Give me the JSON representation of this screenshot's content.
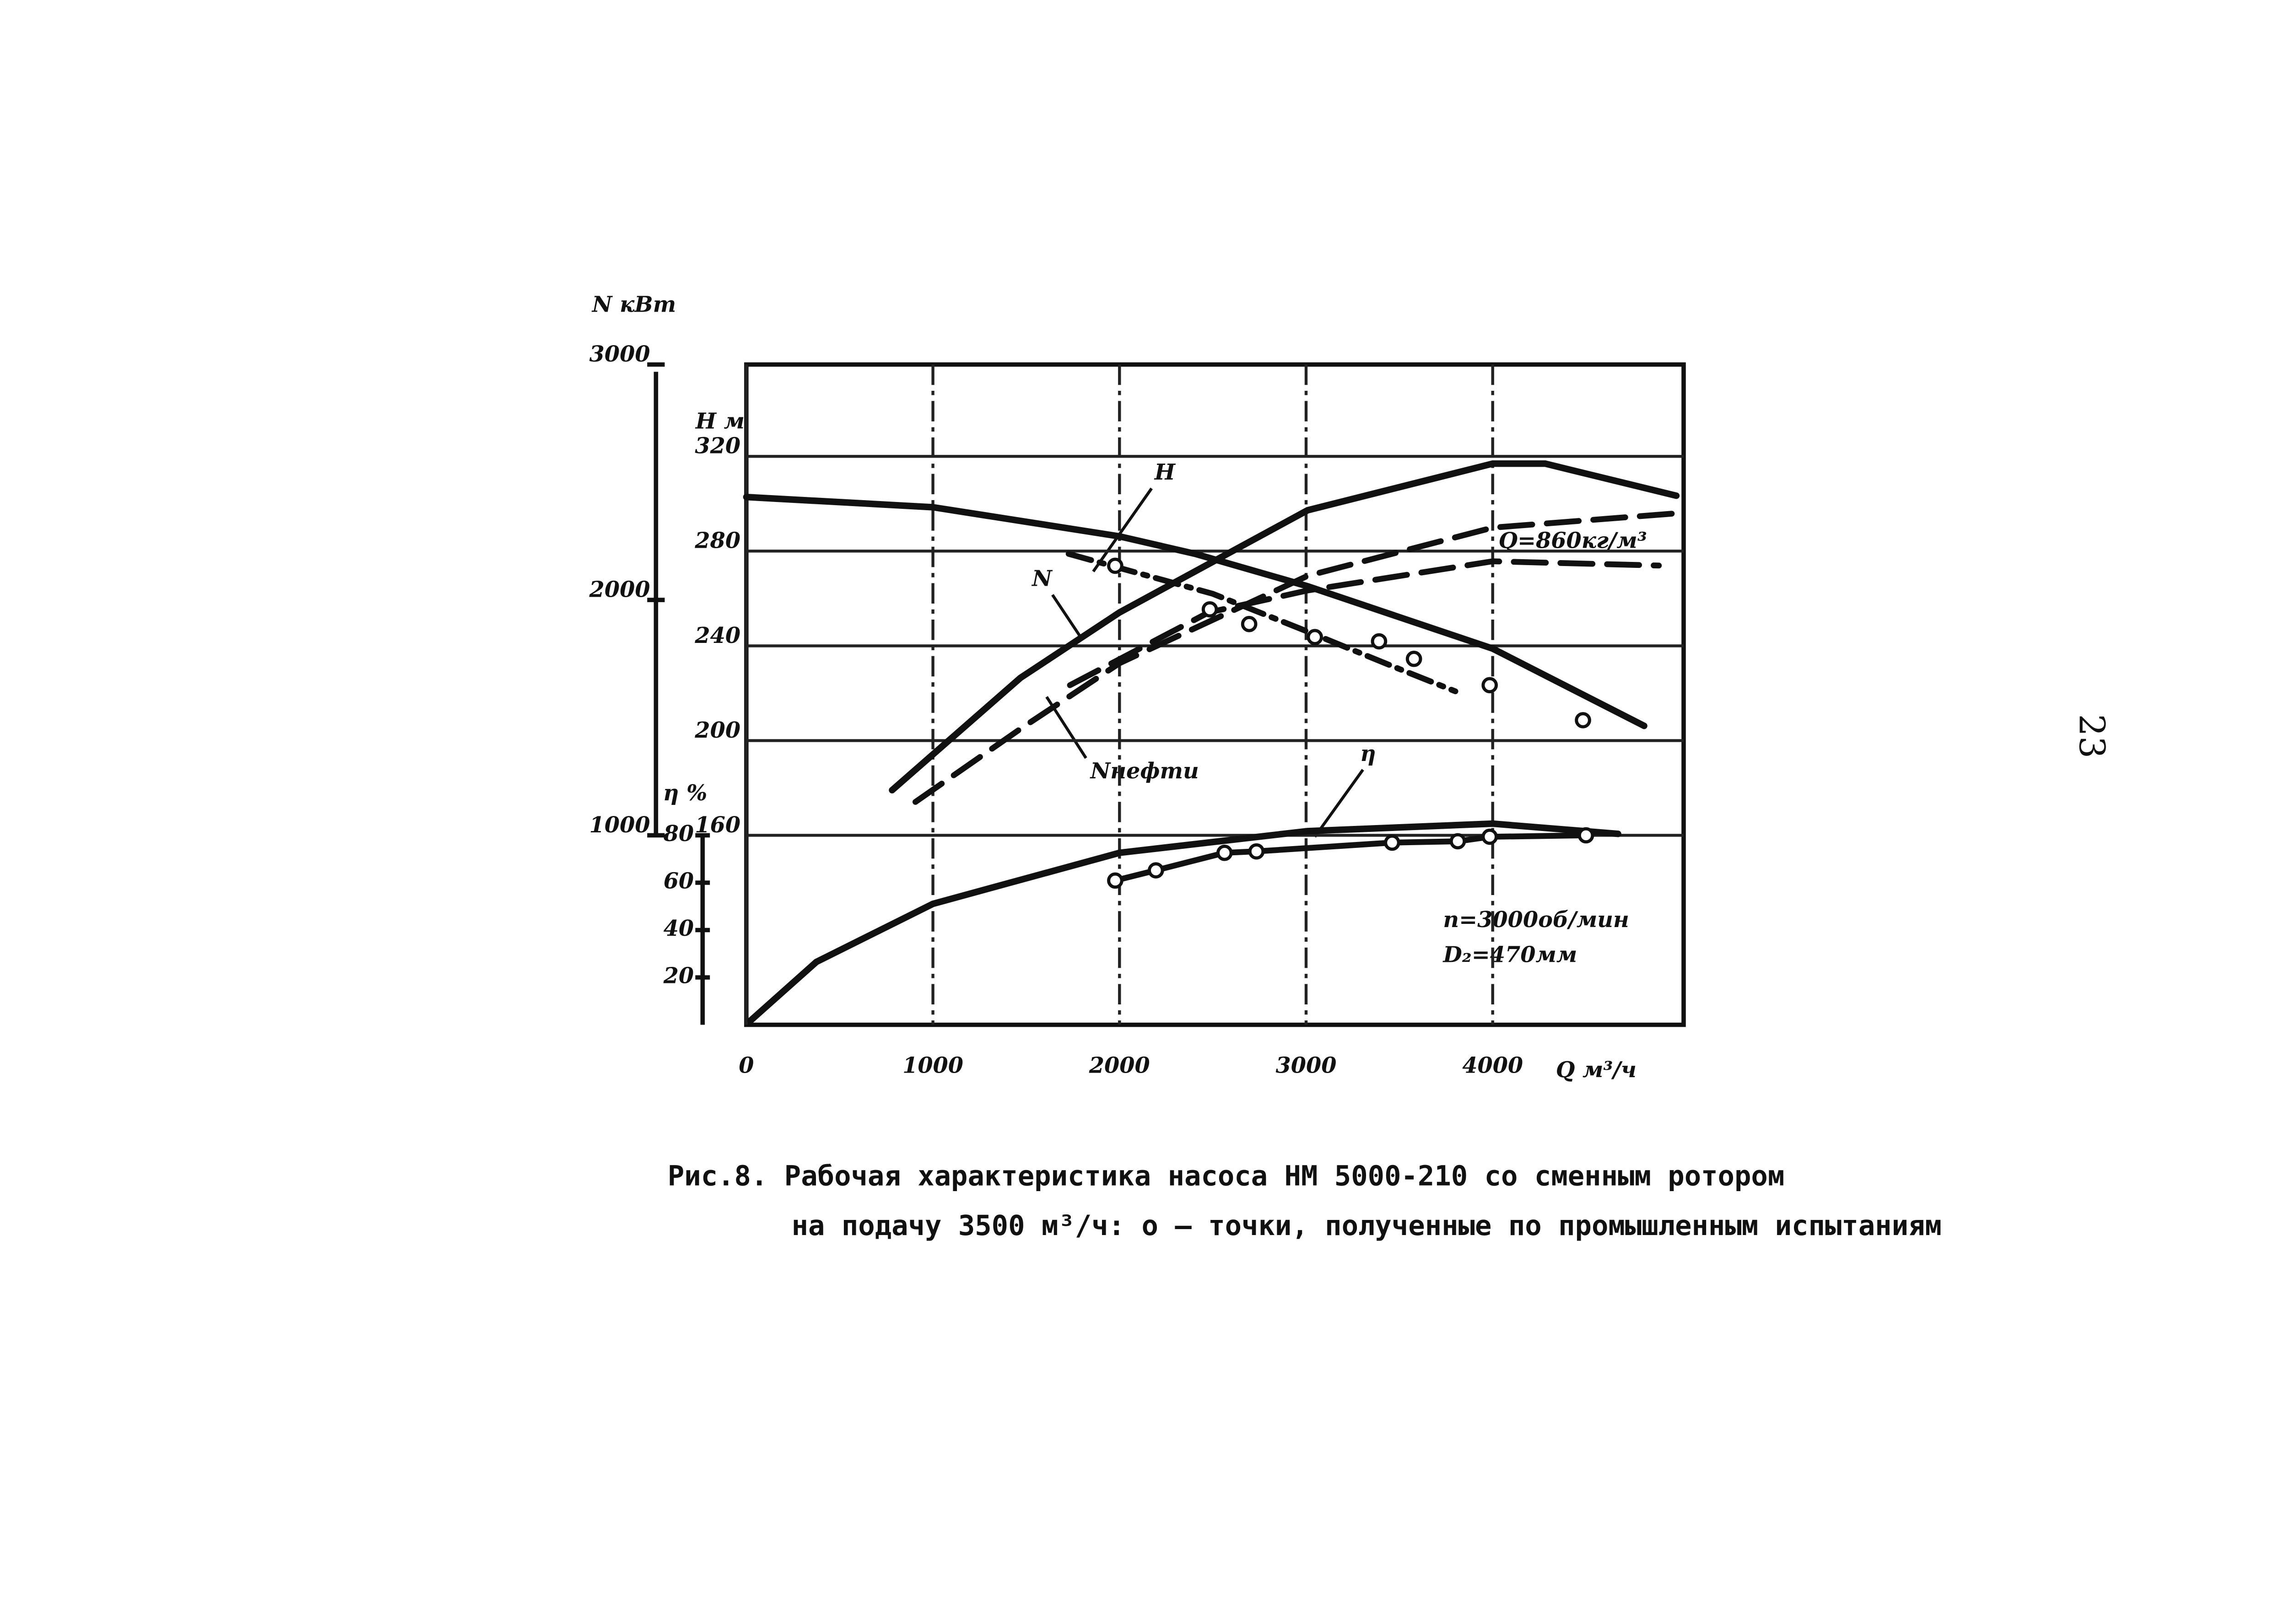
{
  "chart_data": {
    "type": "line",
    "x_label": "Q м³/ч",
    "y_label": "H м",
    "y2_label": "N кВт",
    "y3_label": "η %",
    "xlim": [
      0,
      5000
    ],
    "xticks": [
      0,
      1000,
      2000,
      3000,
      4000
    ],
    "ylim": [
      80,
      360
    ],
    "yticks": [
      320,
      280,
      240,
      200,
      160
    ],
    "y2lim": [
      1000,
      3000
    ],
    "y2ticks": [
      3000,
      2000,
      1000
    ],
    "y3lim": [
      0,
      80
    ],
    "y3ticks": [
      80,
      60,
      40,
      20
    ],
    "grid": true,
    "series": [
      {
        "name": "H",
        "color": "#111111",
        "style": "solid",
        "axis": "y",
        "x": [
          0,
          1000,
          2000,
          2406,
          3008,
          4000,
          4812
        ],
        "values": [
          302.8,
          298.5,
          286.2,
          278.8,
          265.2,
          238.8,
          206.2
        ]
      },
      {
        "name": "N",
        "color": "#111111",
        "style": "solid",
        "axis": "y2",
        "x": [
          781,
          1469,
          2000,
          3008,
          4000,
          4281,
          4984
        ],
        "values": [
          1192,
          1669,
          1947,
          2381,
          2579,
          2579,
          2443
        ]
      },
      {
        "name": "Nнефти",
        "color": "#111111",
        "style": "dashed",
        "axis": "y2",
        "x": [
          906,
          1469,
          2000,
          3008,
          4000,
          4984
        ],
        "values": [
          1142,
          1452,
          1731,
          2102,
          2307,
          2368
        ]
      },
      {
        "color": "#111111",
        "style": "dashed",
        "axis": "y2",
        "x": [
          1734,
          2477,
          3008,
          4000,
          4891
        ],
        "values": [
          1638,
          1947,
          2040,
          2164,
          2146
        ]
      },
      {
        "color": "#111111",
        "style": "dashdot",
        "axis": "y",
        "x": [
          1727,
          2500,
          3000,
          3500,
          3800
        ],
        "values": [
          278.8,
          262.0,
          246.3,
          230.2,
          220.8
        ]
      },
      {
        "name": "η",
        "color": "#111111",
        "style": "solid",
        "axis": "y3",
        "x": [
          23,
          375,
          1000,
          2000,
          3008,
          4000,
          4672
        ],
        "values": [
          1.8,
          26.5,
          51.1,
          72.6,
          81.8,
          84.9,
          80.6
        ]
      },
      {
        "color": "#111111",
        "style": "solid-points",
        "axis": "y3",
        "x": [
          1977,
          2195,
          2563,
          2734,
          3461,
          3813,
          3984,
          4500
        ],
        "values": [
          60.9,
          65.2,
          72.6,
          73.2,
          76.9,
          77.5,
          79.4,
          80.0
        ]
      },
      {
        "color": "#111111",
        "style": "points",
        "axis": "y",
        "x": [
          1977,
          2484,
          2695,
          3047,
          3391,
          3578,
          3984,
          4484
        ],
        "values": [
          273.8,
          255.4,
          249.2,
          243.7,
          241.9,
          234.5,
          223.4,
          208.6
        ]
      }
    ],
    "annotations": [
      "Q=860кг/м³",
      "n=3000об/мин",
      "D₂=470мм"
    ]
  },
  "caption": {
    "line1": "Рис.8. Рабочая характеристика насоса НМ 5000-210 со сменным ротором",
    "line2": "на подачу 3500 м³/ч: о – точки, полученные по промышленным испытаниям"
  },
  "page_number": "23"
}
